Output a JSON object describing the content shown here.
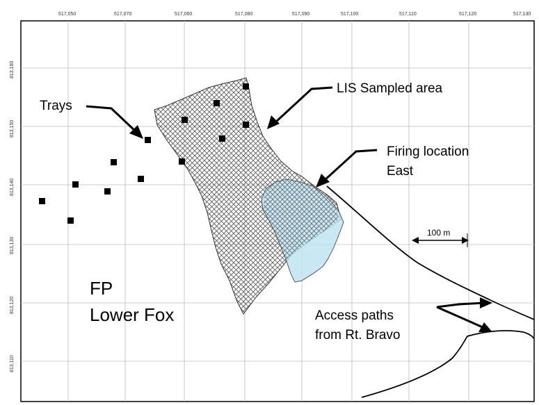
{
  "map": {
    "x_ticks": [
      "517,050",
      "517,060",
      "517,070",
      "517,080",
      "517,090",
      "517,100",
      "517,110",
      "517,120",
      "517,130"
    ],
    "y_ticks": [
      "813,160",
      "813,150",
      "813,140",
      "813,130",
      "813,120",
      "813,110"
    ],
    "labels": {
      "trays": "Trays",
      "lis": "LIS Sampled area",
      "firing_1": "Firing location",
      "firing_2": "East",
      "access_1": "Access paths",
      "access_2": "from Rt. Bravo",
      "fp_1": "FP",
      "fp_2": "Lower Fox"
    },
    "scale_bar": "100 m",
    "colors": {
      "firing_fill": "#bfe3f2",
      "hatch": "#555555",
      "grid": "#bbbbbb",
      "marker": "#000000"
    }
  }
}
